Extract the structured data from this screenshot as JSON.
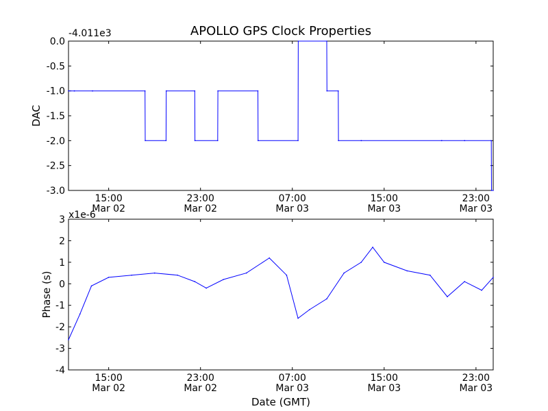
{
  "figure": {
    "title": "APOLLO GPS Clock Properties"
  },
  "chart_data": [
    {
      "type": "line",
      "offset_label": "-4.011e3",
      "ylabel": "DAC",
      "xlabel": "",
      "xlim": [
        "2014-03-02 11:30",
        "2014-03-04 00:30"
      ],
      "ylim": [
        -3.0,
        0.0
      ],
      "yticks": [
        {
          "value": 0.0,
          "label": "0.0"
        },
        {
          "value": -0.5,
          "label": "-0.5"
        },
        {
          "value": -1.0,
          "label": "-1.0"
        },
        {
          "value": -1.5,
          "label": "-1.5"
        },
        {
          "value": -2.0,
          "label": "-2.0"
        },
        {
          "value": -2.5,
          "label": "-2.5"
        },
        {
          "value": -3.0,
          "label": "-3.0"
        }
      ],
      "xticks": [
        {
          "value": "2014-03-02 15:00",
          "time": "15:00",
          "date": "Mar 02"
        },
        {
          "value": "2014-03-02 23:00",
          "time": "23:00",
          "date": "Mar 02"
        },
        {
          "value": "2014-03-03 07:00",
          "time": "07:00",
          "date": "Mar 03"
        },
        {
          "value": "2014-03-03 15:00",
          "time": "15:00",
          "date": "Mar 03"
        },
        {
          "value": "2014-03-03 23:00",
          "time": "23:00",
          "date": "Mar 03"
        }
      ],
      "color": "#0000ff",
      "series": [
        {
          "x": [
            "2014-03-02 11:30",
            "2014-03-02 12:00",
            "2014-03-02 12:01",
            "2014-03-02 13:35",
            "2014-03-02 13:36",
            "2014-03-02 18:10",
            "2014-03-02 18:11",
            "2014-03-02 20:00",
            "2014-03-02 20:01",
            "2014-03-02 22:30",
            "2014-03-02 22:31",
            "2014-03-03 00:30",
            "2014-03-03 00:31",
            "2014-03-03 04:00",
            "2014-03-03 04:01",
            "2014-03-03 07:30",
            "2014-03-03 07:31",
            "2014-03-03 10:00",
            "2014-03-03 10:01",
            "2014-03-03 11:00",
            "2014-03-03 11:01",
            "2014-03-03 13:00",
            "2014-03-03 13:01",
            "2014-03-03 20:00",
            "2014-03-03 20:01",
            "2014-03-03 22:00",
            "2014-03-03 22:01",
            "2014-03-04 00:20",
            "2014-03-04 00:21",
            "2014-03-04 00:30"
          ],
          "y": [
            -1.0,
            -1.0,
            -1.0,
            -1.0,
            -1.0,
            -1.0,
            -2.0,
            -2.0,
            -1.0,
            -1.0,
            -2.0,
            -2.0,
            -1.0,
            -1.0,
            -2.0,
            -2.0,
            0.0,
            0.0,
            -1.0,
            -1.0,
            -2.0,
            -2.0,
            -2.0,
            -2.0,
            -2.0,
            -2.0,
            -2.0,
            -2.0,
            -3.0,
            -3.0
          ]
        }
      ]
    },
    {
      "type": "line",
      "offset_label": "x1e-6",
      "ylabel": "Phase (s)",
      "xlabel": "Date (GMT)",
      "xlim": [
        "2014-03-02 11:30",
        "2014-03-04 00:30"
      ],
      "ylim": [
        -4,
        3
      ],
      "yticks": [
        {
          "value": 3,
          "label": "3"
        },
        {
          "value": 2,
          "label": "2"
        },
        {
          "value": 1,
          "label": "1"
        },
        {
          "value": 0,
          "label": "0"
        },
        {
          "value": -1,
          "label": "-1"
        },
        {
          "value": -2,
          "label": "-2"
        },
        {
          "value": -3,
          "label": "-3"
        },
        {
          "value": -4,
          "label": "-4"
        }
      ],
      "xticks": [
        {
          "value": "2014-03-02 15:00",
          "time": "15:00",
          "date": "Mar 02"
        },
        {
          "value": "2014-03-02 23:00",
          "time": "23:00",
          "date": "Mar 02"
        },
        {
          "value": "2014-03-03 07:00",
          "time": "07:00",
          "date": "Mar 03"
        },
        {
          "value": "2014-03-03 15:00",
          "time": "15:00",
          "date": "Mar 03"
        },
        {
          "value": "2014-03-03 23:00",
          "time": "23:00",
          "date": "Mar 03"
        }
      ],
      "color": "#0000ff",
      "series": [
        {
          "x": [
            "2014-03-02 11:30",
            "2014-03-02 12:30",
            "2014-03-02 13:30",
            "2014-03-02 15:00",
            "2014-03-02 17:00",
            "2014-03-02 19:00",
            "2014-03-02 21:00",
            "2014-03-02 22:30",
            "2014-03-02 23:30",
            "2014-03-03 01:00",
            "2014-03-03 03:00",
            "2014-03-03 05:00",
            "2014-03-03 06:30",
            "2014-03-03 07:30",
            "2014-03-03 08:30",
            "2014-03-03 10:00",
            "2014-03-03 11:30",
            "2014-03-03 13:00",
            "2014-03-03 14:00",
            "2014-03-03 15:00",
            "2014-03-03 17:00",
            "2014-03-03 19:00",
            "2014-03-03 20:30",
            "2014-03-03 22:00",
            "2014-03-03 23:30",
            "2014-03-04 00:30"
          ],
          "y": [
            -2.6,
            -1.4,
            -0.1,
            0.3,
            0.4,
            0.5,
            0.4,
            0.1,
            -0.2,
            0.2,
            0.5,
            1.2,
            0.4,
            -1.6,
            -1.2,
            -0.7,
            0.5,
            1.0,
            1.7,
            1.0,
            0.6,
            0.4,
            -0.6,
            0.1,
            -0.3,
            0.3
          ]
        }
      ]
    }
  ]
}
